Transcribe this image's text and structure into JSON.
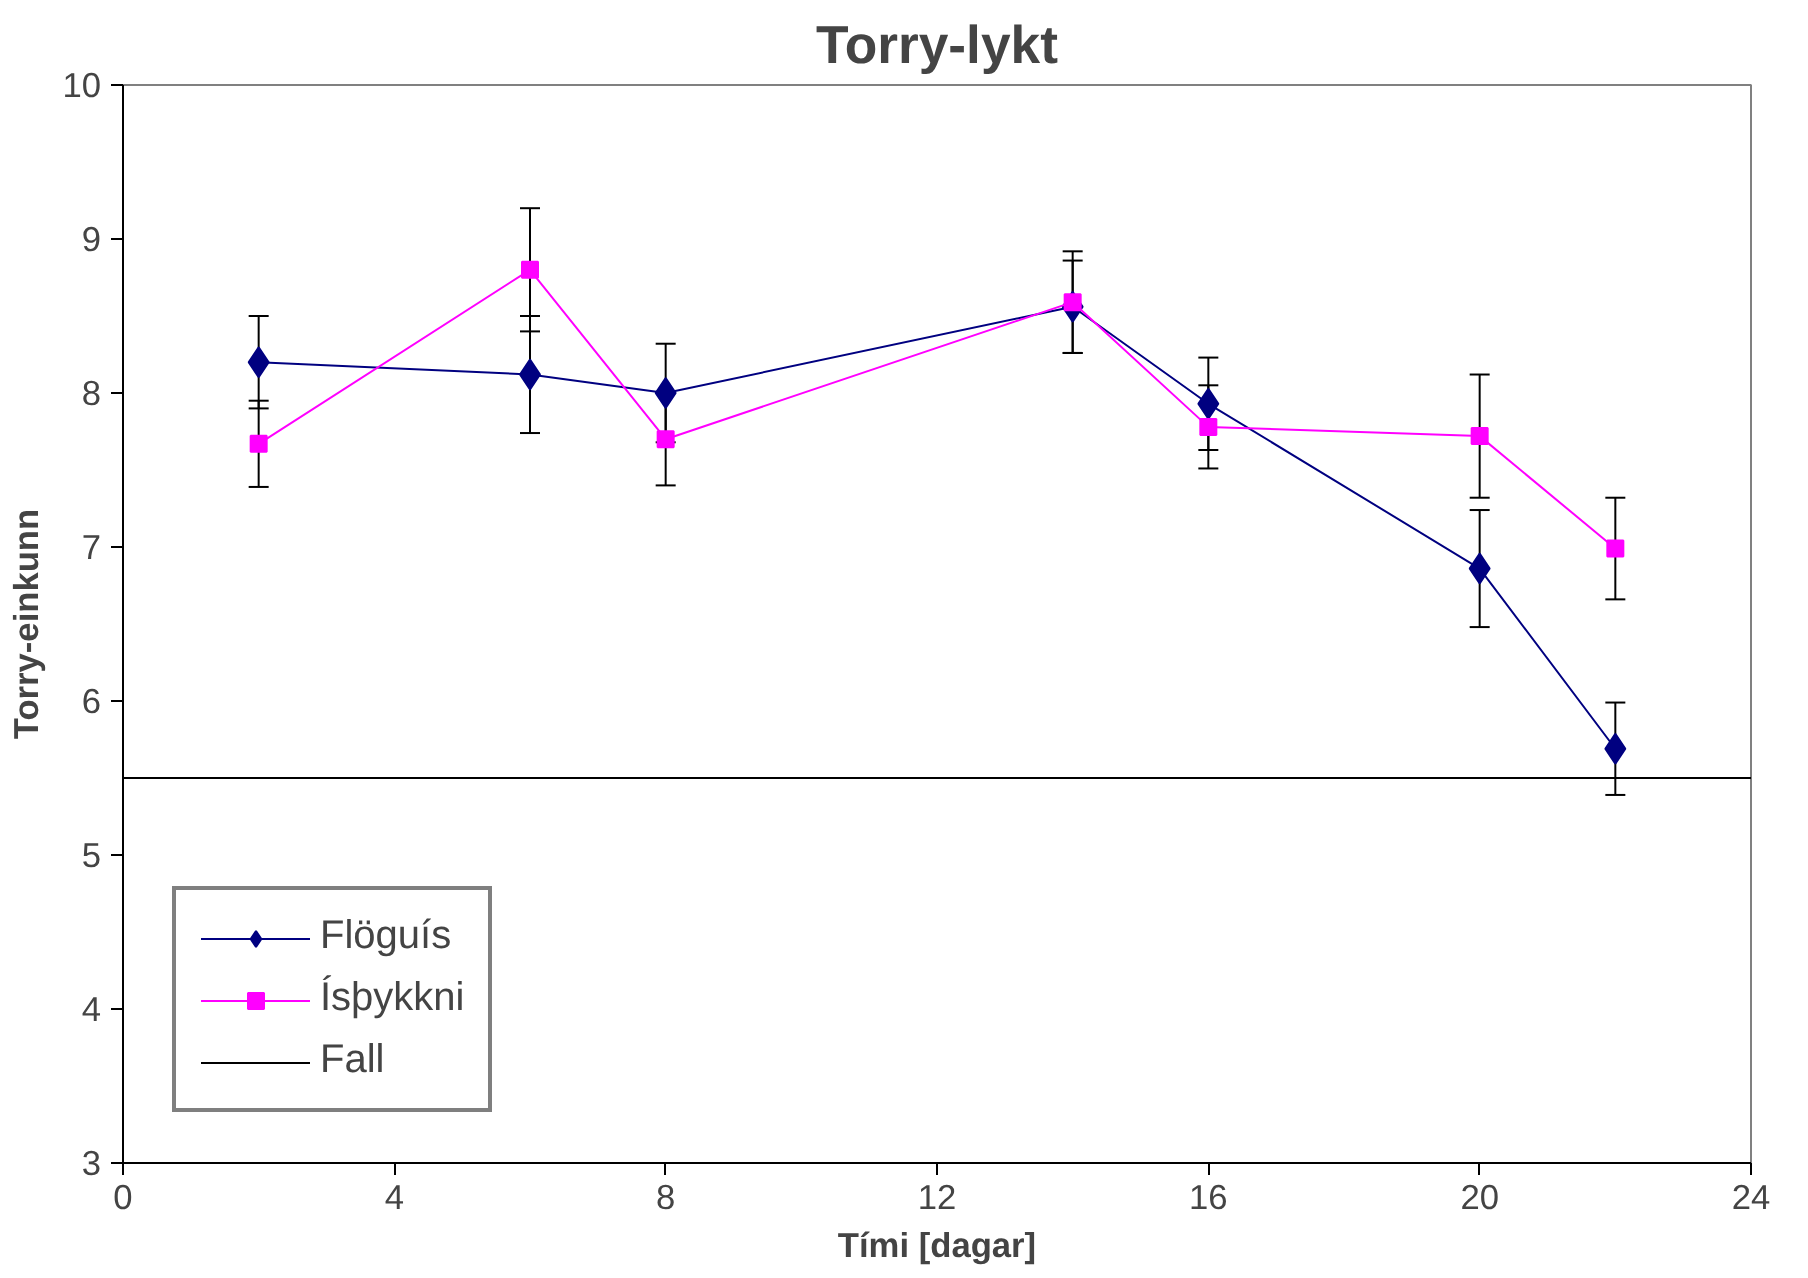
{
  "chart_data": {
    "type": "line",
    "title": "Torry-lykt",
    "xlabel": "Tími [dagar]",
    "ylabel": "Torry-einkunn",
    "x": [
      2,
      6,
      8,
      14,
      16,
      20,
      22
    ],
    "series": [
      {
        "name": "Flöguís",
        "color": "#000080",
        "marker": "diamond",
        "values": [
          8.2,
          8.12,
          8.0,
          8.56,
          7.93,
          6.86,
          5.69
        ],
        "errors": [
          0.3,
          0.38,
          0.32,
          0.3,
          0.3,
          0.38,
          0.3
        ]
      },
      {
        "name": "Ísþykkni",
        "color": "#ff00ff",
        "marker": "square",
        "values": [
          7.67,
          8.8,
          7.7,
          8.59,
          7.78,
          7.72,
          6.99
        ],
        "errors": [
          0.28,
          0.4,
          0.3,
          0.33,
          0.27,
          0.4,
          0.33
        ]
      }
    ],
    "ref_lines": [
      {
        "axis": "y",
        "value": 5.5,
        "label": "Fall",
        "color": "#000000"
      }
    ],
    "xlim": [
      0,
      24
    ],
    "xticks": [
      0,
      4,
      8,
      12,
      16,
      20,
      24
    ],
    "ylim": [
      3,
      10
    ],
    "yticks": [
      3,
      4,
      5,
      6,
      7,
      8,
      9,
      10
    ],
    "grid": false,
    "legend": "bottom left",
    "line_style": "solid"
  }
}
